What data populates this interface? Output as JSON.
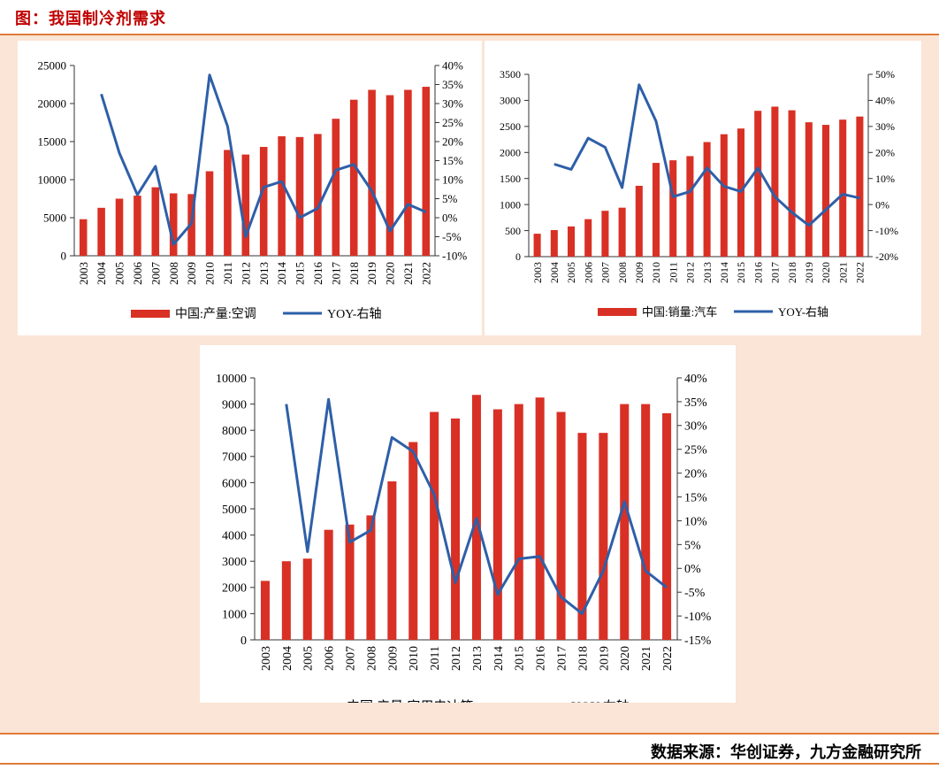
{
  "header": {
    "title": "图：我国制冷剂需求"
  },
  "footer": {
    "source": "数据来源：华创证券，九方金融研究所"
  },
  "colors": {
    "bar": "#d93025",
    "line": "#2e5fa8",
    "accent": "#e07b39",
    "panel_bg": "#fbe5d6"
  },
  "chart_data": [
    {
      "type": "bar",
      "categories": [
        "2003",
        "2004",
        "2005",
        "2006",
        "2007",
        "2008",
        "2009",
        "2010",
        "2011",
        "2012",
        "2013",
        "2014",
        "2015",
        "2016",
        "2017",
        "2018",
        "2019",
        "2020",
        "2021",
        "2022"
      ],
      "series": [
        {
          "name": "中国:产量:空调",
          "type": "bar",
          "axis": "left",
          "values": [
            4800,
            6300,
            7500,
            7900,
            9000,
            8200,
            8100,
            11100,
            13900,
            13300,
            14300,
            15700,
            15600,
            16000,
            18000,
            20500,
            21800,
            21100,
            21800,
            22200
          ]
        },
        {
          "name": "YOY-右轴",
          "type": "line",
          "axis": "right",
          "values": [
            null,
            32.5,
            17,
            6,
            13.5,
            -7,
            -1.5,
            37.5,
            24,
            -5,
            8,
            9.5,
            0,
            2.5,
            12.5,
            14,
            7,
            -3.5,
            3.5,
            1.5
          ]
        }
      ],
      "ylim": [
        0,
        25000
      ],
      "yticks": [
        0,
        5000,
        10000,
        15000,
        20000,
        25000
      ],
      "y2lim": [
        -10,
        40
      ],
      "y2ticks": [
        "-10%",
        "-5%",
        "0%",
        "5%",
        "10%",
        "15%",
        "20%",
        "25%",
        "30%",
        "35%",
        "40%"
      ],
      "legend": "bottom"
    },
    {
      "type": "bar",
      "categories": [
        "2003",
        "2004",
        "2005",
        "2006",
        "2007",
        "2008",
        "2009",
        "2010",
        "2011",
        "2012",
        "2013",
        "2014",
        "2015",
        "2016",
        "2017",
        "2018",
        "2019",
        "2020",
        "2021",
        "2022"
      ],
      "series": [
        {
          "name": "中国:销量:汽车",
          "type": "bar",
          "axis": "left",
          "values": [
            440,
            510,
            580,
            720,
            880,
            940,
            1360,
            1800,
            1850,
            1930,
            2200,
            2350,
            2460,
            2800,
            2880,
            2810,
            2580,
            2530,
            2630,
            2690
          ]
        },
        {
          "name": "YOY-右轴",
          "type": "line",
          "axis": "right",
          "values": [
            null,
            15.5,
            13.5,
            25.5,
            22,
            6.5,
            46,
            32,
            3,
            5,
            14,
            7,
            5,
            14,
            3,
            -3,
            -8,
            -2,
            4,
            2.5
          ]
        }
      ],
      "ylim": [
        0,
        3500
      ],
      "yticks": [
        0,
        500,
        1000,
        1500,
        2000,
        2500,
        3000,
        3500
      ],
      "y2lim": [
        -20,
        50
      ],
      "y2ticks": [
        "-20%",
        "-10%",
        "0%",
        "10%",
        "20%",
        "30%",
        "40%",
        "50%"
      ],
      "legend": "bottom"
    },
    {
      "type": "bar",
      "categories": [
        "2003",
        "2004",
        "2005",
        "2006",
        "2007",
        "2008",
        "2009",
        "2010",
        "2011",
        "2012",
        "2013",
        "2014",
        "2015",
        "2016",
        "2017",
        "2018",
        "2019",
        "2020",
        "2021",
        "2022"
      ],
      "series": [
        {
          "name": "中国:产量:家用电冰箱",
          "type": "bar",
          "axis": "left",
          "values": [
            2250,
            3000,
            3100,
            4200,
            4400,
            4750,
            6050,
            7550,
            8700,
            8450,
            9350,
            8800,
            9000,
            9250,
            8700,
            7900,
            7900,
            9000,
            9000,
            8650
          ]
        },
        {
          "name": "YOY-右轴",
          "type": "line",
          "axis": "right",
          "values": [
            null,
            34.5,
            3.5,
            35.5,
            5.5,
            8,
            27.5,
            24.5,
            15.5,
            -3,
            10.5,
            -5.5,
            2,
            2.5,
            -6,
            -9.5,
            -0.5,
            14,
            -0.5,
            -4
          ]
        }
      ],
      "ylim": [
        0,
        10000
      ],
      "yticks": [
        0,
        1000,
        2000,
        3000,
        4000,
        5000,
        6000,
        7000,
        8000,
        9000,
        10000
      ],
      "y2lim": [
        -15,
        40
      ],
      "y2ticks": [
        "-15%",
        "-10%",
        "-5%",
        "0%",
        "5%",
        "10%",
        "15%",
        "20%",
        "25%",
        "30%",
        "35%",
        "40%"
      ],
      "legend": "bottom"
    }
  ]
}
